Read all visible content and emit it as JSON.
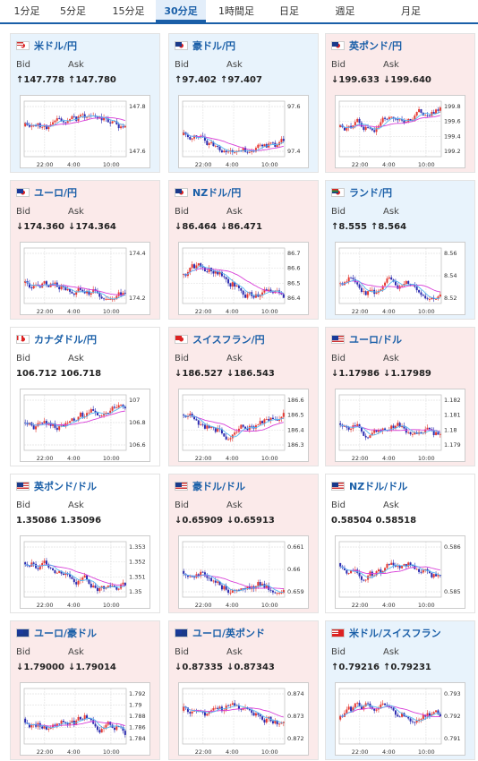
{
  "tabs": [
    {
      "label": "1分足",
      "active": false
    },
    {
      "label": "5分足",
      "active": false
    },
    {
      "label": "15分足",
      "active": false
    },
    {
      "label": "30分足",
      "active": true
    },
    {
      "label": "1時間足",
      "active": false
    },
    {
      "label": "日足",
      "active": false
    },
    {
      "label": "週足",
      "active": false
    },
    {
      "label": "月足",
      "active": false
    }
  ],
  "labels": {
    "bid": "Bid",
    "ask": "Ask"
  },
  "colors": {
    "up": "#2aa0c8",
    "down": "#e53a33",
    "ma_long": "#d83fd8",
    "ma_short": "#57b8f0"
  },
  "pairs": [
    {
      "name": "米ドル/円",
      "flag": "us-jp",
      "trend": "up",
      "bid": "↑147.778",
      "ask": "↑147.780",
      "ticks": [
        "147.8",
        "147.6"
      ],
      "xticks": [
        "22:00",
        "4:00",
        "10:00"
      ]
    },
    {
      "name": "豪ドル/円",
      "flag": "au-jp",
      "trend": "up",
      "bid": "↑97.402",
      "ask": "↑97.407",
      "ticks": [
        "97.6",
        "97.4"
      ],
      "xticks": [
        "22:00",
        "4:00",
        "10:00"
      ]
    },
    {
      "name": "英ポンド/円",
      "flag": "gb-jp",
      "trend": "down",
      "bid": "↓199.633",
      "ask": "↓199.640",
      "ticks": [
        "199.8",
        "199.6",
        "199.4",
        "199.2"
      ],
      "xticks": [
        "22:00",
        "4:00",
        "10:00"
      ]
    },
    {
      "name": "ユーロ/円",
      "flag": "eu-jp",
      "trend": "down",
      "bid": "↓174.360",
      "ask": "↓174.364",
      "ticks": [
        "174.4",
        "174.2"
      ],
      "xticks": [
        "22:00",
        "4:00",
        "10:00"
      ]
    },
    {
      "name": "NZドル/円",
      "flag": "nz-jp",
      "trend": "down",
      "bid": "↓86.464",
      "ask": "↓86.471",
      "ticks": [
        "86.7",
        "86.6",
        "86.5",
        "86.4"
      ],
      "xticks": [
        "22:00",
        "4:00",
        "10:00"
      ]
    },
    {
      "name": "ランド/円",
      "flag": "za-jp",
      "trend": "up",
      "bid": "↑8.555",
      "ask": "↑8.564",
      "ticks": [
        "8.56",
        "8.54",
        "8.52"
      ],
      "xticks": [
        "22:00",
        "4:00",
        "10:00"
      ]
    },
    {
      "name": "カナダドル/円",
      "flag": "ca-jp",
      "trend": "none",
      "bid": "106.712",
      "ask": "106.718",
      "ticks": [
        "107",
        "106.8",
        "106.6"
      ],
      "xticks": [
        "22:00",
        "4:00",
        "10:00"
      ]
    },
    {
      "name": "スイスフラン/円",
      "flag": "ch-jp",
      "trend": "down",
      "bid": "↓186.527",
      "ask": "↓186.543",
      "ticks": [
        "186.6",
        "186.5",
        "186.4",
        "186.3"
      ],
      "xticks": [
        "22:00",
        "4:00",
        "10:00"
      ]
    },
    {
      "name": "ユーロ/ドル",
      "flag": "eu-us",
      "trend": "down",
      "bid": "↓1.17986",
      "ask": "↓1.17989",
      "ticks": [
        "1.182",
        "1.181",
        "1.18",
        "1.179"
      ],
      "xticks": [
        "22:00",
        "4:00",
        "10:00"
      ]
    },
    {
      "name": "英ポンド/ドル",
      "flag": "gb-us",
      "trend": "none",
      "bid": "1.35086",
      "ask": "1.35096",
      "ticks": [
        "1.353",
        "1.352",
        "1.351",
        "1.35"
      ],
      "xticks": [
        "22:00",
        "4:00",
        "10:00"
      ]
    },
    {
      "name": "豪ドル/ドル",
      "flag": "au-us",
      "trend": "down",
      "bid": "↓0.65909",
      "ask": "↓0.65913",
      "ticks": [
        "0.661",
        "0.66",
        "0.659"
      ],
      "xticks": [
        "22:00",
        "4:00",
        "10:00"
      ]
    },
    {
      "name": "NZドル/ドル",
      "flag": "nz-us",
      "trend": "none",
      "bid": "0.58504",
      "ask": "0.58518",
      "ticks": [
        "0.586",
        "0.585"
      ],
      "xticks": [
        "22:00",
        "4:00",
        "10:00"
      ]
    },
    {
      "name": "ユーロ/豪ドル",
      "flag": "eu-au",
      "trend": "down",
      "bid": "↓1.79000",
      "ask": "↓1.79014",
      "ticks": [
        "1.792",
        "1.79",
        "1.788",
        "1.786",
        "1.784"
      ],
      "xticks": [
        "22:00",
        "4:00",
        "10:00"
      ]
    },
    {
      "name": "ユーロ/英ポンド",
      "flag": "eu-gb",
      "trend": "down",
      "bid": "↓0.87335",
      "ask": "↓0.87343",
      "ticks": [
        "0.874",
        "0.873",
        "0.872"
      ],
      "xticks": [
        "22:00",
        "4:00",
        "10:00"
      ]
    },
    {
      "name": "米ドル/スイスフラン",
      "flag": "us-ch",
      "trend": "up",
      "bid": "↑0.79216",
      "ask": "↑0.79231",
      "ticks": [
        "0.793",
        "0.792",
        "0.791"
      ],
      "xticks": [
        "22:00",
        "4:00",
        "10:00"
      ]
    }
  ]
}
